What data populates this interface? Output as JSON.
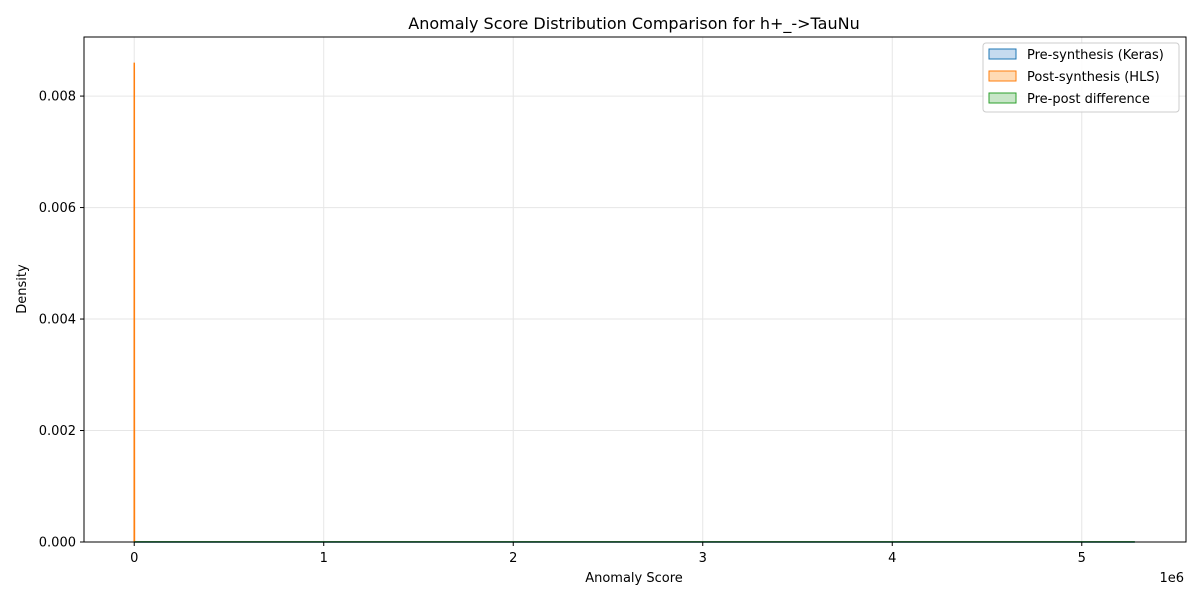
{
  "chart_data": {
    "type": "area",
    "title": "Anomaly Score Distribution Comparison for h+_->TauNu",
    "xlabel": "Anomaly Score",
    "ylabel": "Density",
    "x_offset_label": "1e6",
    "xlim": [
      -0.265,
      5.55
    ],
    "ylim": [
      0,
      0.00906
    ],
    "x_scale": 1000000,
    "x_ticks": [
      0,
      1,
      2,
      3,
      4,
      5
    ],
    "x_tick_labels": [
      "0",
      "1",
      "2",
      "3",
      "4",
      "5"
    ],
    "y_ticks": [
      0,
      0.002,
      0.004,
      0.006,
      0.008
    ],
    "y_tick_labels": [
      "0.000",
      "0.002",
      "0.004",
      "0.006",
      "0.008"
    ],
    "grid": true,
    "legend_position": "top-right",
    "series": [
      {
        "name": "Pre-synthesis (Keras)",
        "color": "#1f77b4",
        "fill": "#c6dbef",
        "x": [
          0,
          5.28
        ],
        "y": [
          1e-06,
          1e-06
        ]
      },
      {
        "name": "Post-synthesis (HLS)",
        "color": "#ff7f0e",
        "fill": "#ffdbb5",
        "x": [
          0,
          0.0002,
          0.0004,
          0.0008,
          0.0012
        ],
        "y": [
          0,
          0.0086,
          0.0084,
          0.003,
          0
        ]
      },
      {
        "name": "Pre-post difference",
        "color": "#2ca02c",
        "fill": "#c8e6c8",
        "x": [
          0,
          5.28
        ],
        "y": [
          2e-06,
          2e-06
        ]
      }
    ]
  }
}
